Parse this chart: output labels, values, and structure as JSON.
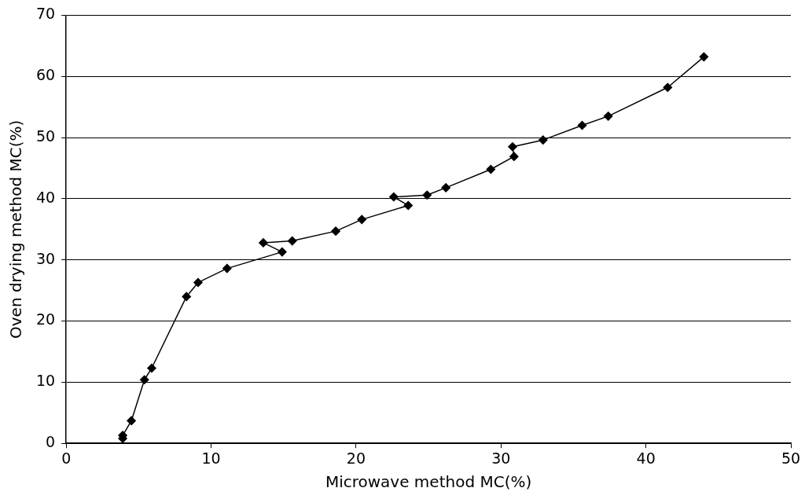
{
  "chart_data": {
    "type": "line",
    "xlabel": "Microwave method MC(%)",
    "ylabel": "Oven drying method MC(%)",
    "x": [
      3.9,
      3.9,
      4.5,
      5.4,
      5.9,
      8.3,
      9.1,
      11.1,
      14.9,
      13.6,
      15.6,
      18.6,
      20.4,
      23.6,
      22.6,
      24.9,
      26.2,
      29.3,
      30.9,
      30.8,
      32.9,
      35.6,
      37.4,
      41.5,
      44.0
    ],
    "series": [
      {
        "color": "#000000",
        "values": [
          0.8,
          1.3,
          3.7,
          10.4,
          12.3,
          24.0,
          26.3,
          28.6,
          31.3,
          32.8,
          33.1,
          34.7,
          36.6,
          38.9,
          40.3,
          40.6,
          41.8,
          44.8,
          46.9,
          48.5,
          49.6,
          52.0,
          53.5,
          58.2,
          63.2
        ]
      }
    ],
    "xlim": [
      0,
      50
    ],
    "xticks": [
      0,
      10,
      20,
      30,
      40,
      50
    ],
    "ylim": [
      0,
      70
    ],
    "yticks": [
      0,
      10,
      20,
      30,
      40,
      50,
      60,
      70
    ],
    "grid": "y",
    "legend": false,
    "marker": "diamond",
    "line_style": "solid"
  }
}
